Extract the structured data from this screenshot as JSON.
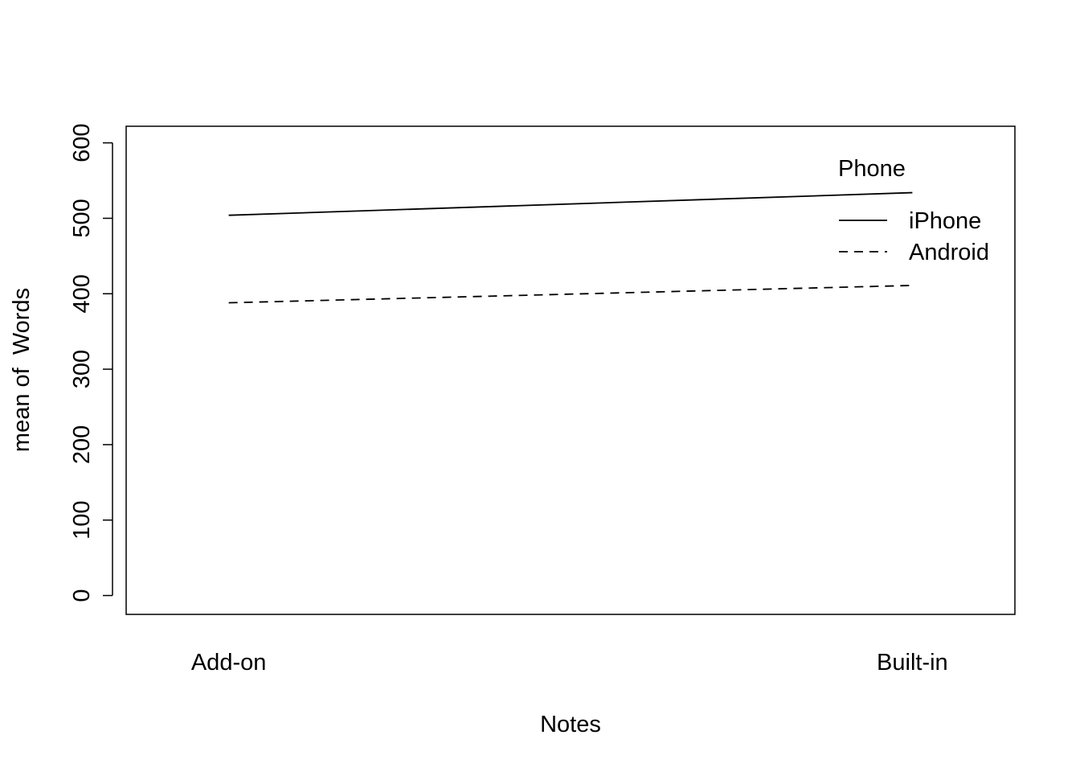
{
  "chart_data": {
    "type": "line",
    "title": "",
    "xlabel": "Notes",
    "ylabel": "mean of  Words",
    "categories": [
      "Add-on",
      "Built-in"
    ],
    "ylim": [
      -25,
      622
    ],
    "yticks": [
      0,
      100,
      200,
      300,
      400,
      500,
      600
    ],
    "grid": false,
    "legend": {
      "title": "Phone",
      "placement": "top-right",
      "entries": [
        {
          "label": "iPhone",
          "line_style": "solid"
        },
        {
          "label": "Android",
          "line_style": "dashed"
        }
      ]
    },
    "series": [
      {
        "name": "iPhone",
        "line_style": "solid",
        "values": [
          504,
          534
        ]
      },
      {
        "name": "Android",
        "line_style": "dashed",
        "values": [
          388,
          411
        ]
      }
    ]
  }
}
